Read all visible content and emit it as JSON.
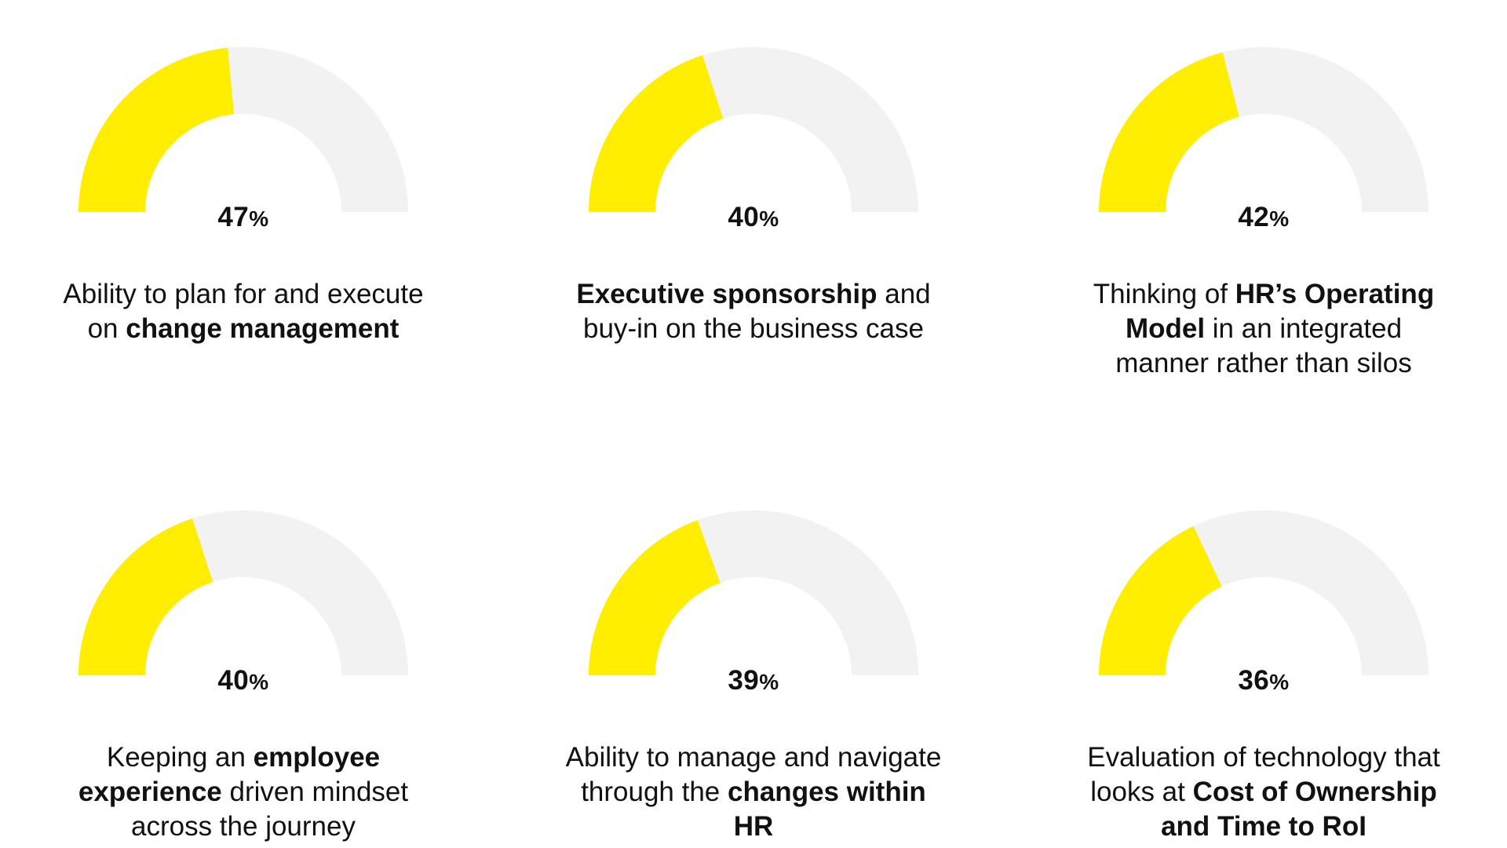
{
  "colors": {
    "filled": "#FFEE00",
    "track": "#F2F2F2",
    "text": "#111111"
  },
  "chart_data": {
    "type": "gauge",
    "unit": "%",
    "max": 100,
    "gauges": [
      {
        "value": 47,
        "value_label": "47",
        "label_parts": [
          {
            "text": "Ability to plan for and execute on ",
            "bold": false
          },
          {
            "text": "change management",
            "bold": true
          }
        ]
      },
      {
        "value": 40,
        "value_label": "40",
        "label_parts": [
          {
            "text": "Executive sponsorship",
            "bold": true
          },
          {
            "text": " and buy-in on the business case",
            "bold": false
          }
        ]
      },
      {
        "value": 42,
        "value_label": "42",
        "label_parts": [
          {
            "text": "Thinking of ",
            "bold": false
          },
          {
            "text": "HR’s Operating Model",
            "bold": true
          },
          {
            "text": " in an integrated manner rather than silos",
            "bold": false
          }
        ]
      },
      {
        "value": 40,
        "value_label": "40",
        "label_parts": [
          {
            "text": "Keeping an ",
            "bold": false
          },
          {
            "text": "employee experience",
            "bold": true
          },
          {
            "text": " driven mindset across the journey",
            "bold": false
          }
        ]
      },
      {
        "value": 39,
        "value_label": "39",
        "label_parts": [
          {
            "text": "Ability to manage and navigate through the ",
            "bold": false
          },
          {
            "text": "changes within HR",
            "bold": true
          }
        ]
      },
      {
        "value": 36,
        "value_label": "36",
        "label_parts": [
          {
            "text": "Evaluation of technology that looks at ",
            "bold": false
          },
          {
            "text": "Cost of Ownership and Time to RoI",
            "bold": true
          }
        ]
      }
    ]
  }
}
